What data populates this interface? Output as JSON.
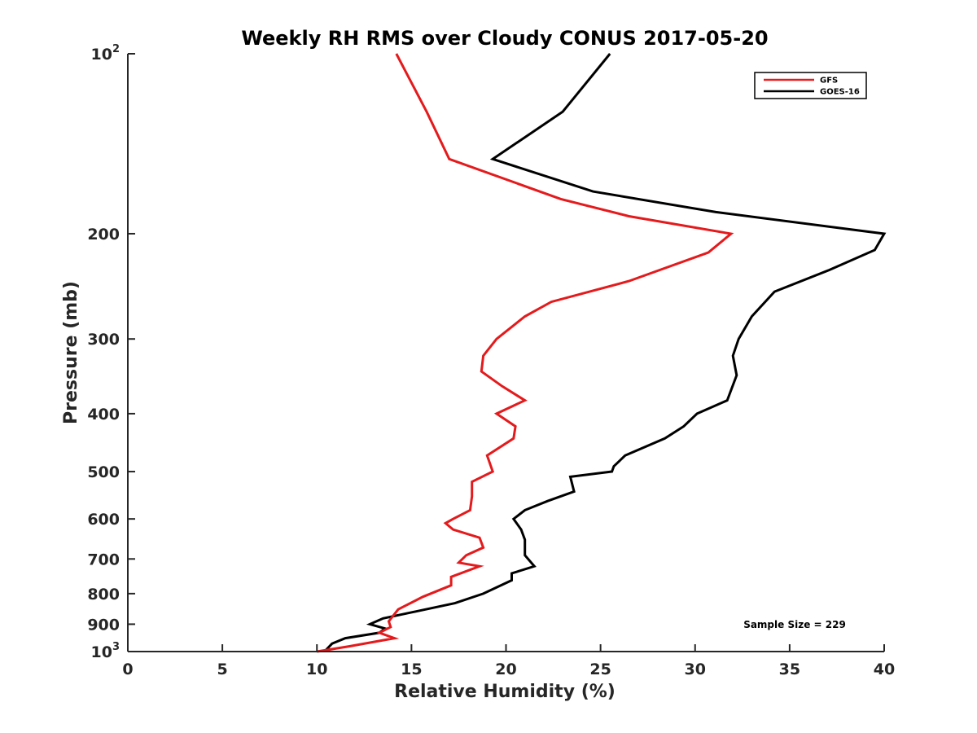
{
  "chart_data": {
    "type": "line",
    "title": "Weekly RH RMS over Cloudy CONUS 2017-05-20",
    "xlabel": "Relative Humidity (%)",
    "ylabel": "Pressure (mb)",
    "xlim": [
      0,
      40
    ],
    "ylim": [
      100,
      1000
    ],
    "y_scale": "log",
    "y_reversed": true,
    "x_ticks": [
      "0",
      "5",
      "10",
      "15",
      "20",
      "25",
      "30",
      "35",
      "40"
    ],
    "x_tick_values": [
      0,
      5,
      10,
      15,
      20,
      25,
      30,
      35,
      40
    ],
    "y_tick_values": [
      100,
      200,
      300,
      400,
      500,
      600,
      700,
      800,
      900,
      1000
    ],
    "y_ticks": [
      {
        "base": "10",
        "sup": "2",
        "value": 100
      },
      {
        "base": "200",
        "sup": "",
        "value": 200
      },
      {
        "base": "300",
        "sup": "",
        "value": 300
      },
      {
        "base": "400",
        "sup": "",
        "value": 400
      },
      {
        "base": "500",
        "sup": "",
        "value": 500
      },
      {
        "base": "600",
        "sup": "",
        "value": 600
      },
      {
        "base": "700",
        "sup": "",
        "value": 700
      },
      {
        "base": "800",
        "sup": "",
        "value": 800
      },
      {
        "base": "900",
        "sup": "",
        "value": 900
      },
      {
        "base": "10",
        "sup": "3",
        "value": 1000
      }
    ],
    "grid": false,
    "legend_position": "top-right",
    "annotation": "Sample Size = 229",
    "series": [
      {
        "name": "GFS",
        "color": "#e41a1c",
        "points": [
          [
            14.2,
            100
          ],
          [
            15.8,
            125
          ],
          [
            17.0,
            150
          ],
          [
            22.9,
            175
          ],
          [
            26.5,
            187
          ],
          [
            31.9,
            200
          ],
          [
            30.7,
            215
          ],
          [
            26.5,
            240
          ],
          [
            22.4,
            260
          ],
          [
            21.0,
            275
          ],
          [
            19.5,
            300
          ],
          [
            18.8,
            320
          ],
          [
            18.7,
            340
          ],
          [
            19.8,
            360
          ],
          [
            21.0,
            380
          ],
          [
            19.5,
            400
          ],
          [
            20.5,
            420
          ],
          [
            20.4,
            440
          ],
          [
            19.0,
            470
          ],
          [
            19.3,
            500
          ],
          [
            18.2,
            520
          ],
          [
            18.2,
            550
          ],
          [
            18.1,
            580
          ],
          [
            17.2,
            600
          ],
          [
            16.8,
            610
          ],
          [
            17.2,
            625
          ],
          [
            18.6,
            645
          ],
          [
            18.8,
            670
          ],
          [
            17.9,
            690
          ],
          [
            17.5,
            710
          ],
          [
            18.6,
            720
          ],
          [
            17.1,
            750
          ],
          [
            17.1,
            775
          ],
          [
            15.6,
            810
          ],
          [
            14.3,
            850
          ],
          [
            13.8,
            890
          ],
          [
            13.9,
            910
          ],
          [
            13.3,
            930
          ],
          [
            14.1,
            950
          ],
          [
            12.9,
            965
          ],
          [
            11.7,
            980
          ],
          [
            10.0,
            1000
          ]
        ]
      },
      {
        "name": "GOES-16",
        "color": "#000000",
        "points": [
          [
            25.5,
            100
          ],
          [
            23.0,
            125
          ],
          [
            19.3,
            150
          ],
          [
            24.6,
            170
          ],
          [
            31.1,
            184
          ],
          [
            40.0,
            200
          ],
          [
            39.5,
            213
          ],
          [
            37.1,
            230
          ],
          [
            34.2,
            250
          ],
          [
            33.0,
            275
          ],
          [
            32.3,
            300
          ],
          [
            32.0,
            320
          ],
          [
            32.2,
            345
          ],
          [
            31.7,
            380
          ],
          [
            30.1,
            400
          ],
          [
            29.4,
            420
          ],
          [
            28.4,
            440
          ],
          [
            26.3,
            470
          ],
          [
            25.7,
            490
          ],
          [
            25.6,
            500
          ],
          [
            23.4,
            510
          ],
          [
            23.6,
            540
          ],
          [
            22.2,
            560
          ],
          [
            21.0,
            580
          ],
          [
            20.4,
            600
          ],
          [
            20.8,
            625
          ],
          [
            21.0,
            650
          ],
          [
            21.0,
            690
          ],
          [
            21.5,
            720
          ],
          [
            20.3,
            740
          ],
          [
            20.3,
            760
          ],
          [
            18.8,
            800
          ],
          [
            17.3,
            830
          ],
          [
            13.5,
            880
          ],
          [
            12.8,
            900
          ],
          [
            13.6,
            915
          ],
          [
            13.3,
            930
          ],
          [
            11.5,
            950
          ],
          [
            10.8,
            970
          ],
          [
            10.4,
            1000
          ]
        ]
      }
    ]
  }
}
